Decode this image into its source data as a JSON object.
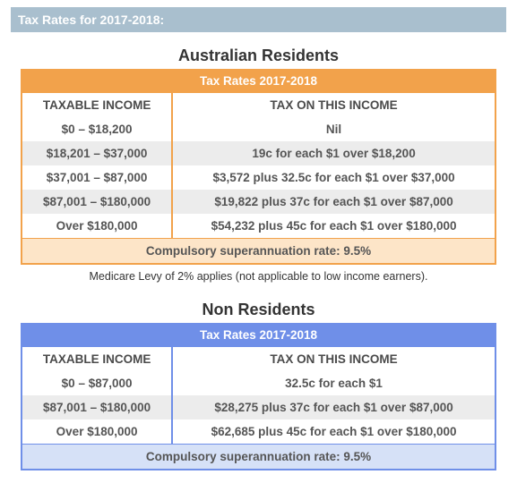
{
  "page_title": "Tax Rates for 2017-2018:",
  "colors": {
    "title_bar_bg": "#a9bfce",
    "title_bar_text": "#ffffff",
    "orange_border": "#f2a24b",
    "orange_footer_bg": "#fde5c8",
    "blue_border": "#6f8fe8",
    "blue_footer_bg": "#d6e1f7",
    "stripe_even": "#ffffff",
    "stripe_odd": "#ececec",
    "body_text": "#555555"
  },
  "residents": {
    "heading": "Australian Residents",
    "subheading": "Tax Rates 2017-2018",
    "col1": "TAXABLE INCOME",
    "col2": "TAX ON THIS INCOME",
    "rows": [
      {
        "bracket": "$0 – $18,200",
        "tax": "Nil"
      },
      {
        "bracket": "$18,201 – $37,000",
        "tax": "19c for each $1 over $18,200"
      },
      {
        "bracket": "$37,001 – $87,000",
        "tax": "$3,572 plus 32.5c for each $1 over $37,000"
      },
      {
        "bracket": "$87,001 – $180,000",
        "tax": "$19,822 plus 37c for each $1 over $87,000"
      },
      {
        "bracket": "Over $180,000",
        "tax": "$54,232 plus 45c for each $1 over $180,000"
      }
    ],
    "footer": "Compulsory superannuation rate: 9.5%",
    "note": "Medicare Levy of 2% applies (not applicable to low income earners)."
  },
  "nonresidents": {
    "heading": "Non Residents",
    "subheading": "Tax Rates 2017-2018",
    "col1": "TAXABLE INCOME",
    "col2": "TAX ON THIS INCOME",
    "rows": [
      {
        "bracket": "$0 – $87,000",
        "tax": "32.5c for each $1"
      },
      {
        "bracket": "$87,001 – $180,000",
        "tax": "$28,275 plus 37c for each $1 over $87,000"
      },
      {
        "bracket": "Over $180,000",
        "tax": "$62,685 plus 45c for each $1 over $180,000"
      }
    ],
    "footer": "Compulsory superannuation rate: 9.5%"
  }
}
